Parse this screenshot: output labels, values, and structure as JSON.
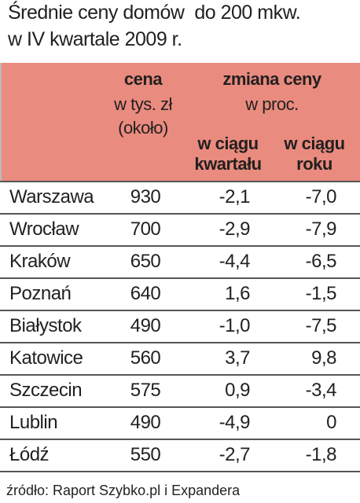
{
  "title": [
    "Średnie ceny domów  do 200 mkw.",
    "w IV kwartale 2009 r."
  ],
  "table": {
    "header": {
      "price": [
        "cena",
        "w tys. zł",
        "(około)"
      ],
      "change": [
        "zmiana ceny",
        "w proc."
      ],
      "quarter": [
        "w ciągu",
        "kwartału"
      ],
      "year": [
        "w ciągu",
        "roku"
      ]
    },
    "rows": [
      [
        "Warszawa",
        "930",
        "-2,1",
        "-7,0"
      ],
      [
        "Wrocław",
        "700",
        "-2,9",
        "-7,9"
      ],
      [
        "Kraków",
        "650",
        "-4,4",
        "-6,5"
      ],
      [
        "Poznań",
        "640",
        "1,6",
        "-1,5"
      ],
      [
        "Białystok",
        "490",
        "-1,0",
        "-7,5"
      ],
      [
        "Katowice",
        "560",
        "3,7",
        "9,8"
      ],
      [
        "Szczecin",
        "575",
        "0,9",
        "-3,4"
      ],
      [
        "Lublin",
        "490",
        "-4,9",
        "0"
      ],
      [
        "Łódź",
        "550",
        "-2,7",
        "-1,8"
      ]
    ]
  },
  "source": "źródło: Raport Szybko.pl i Expandera"
}
